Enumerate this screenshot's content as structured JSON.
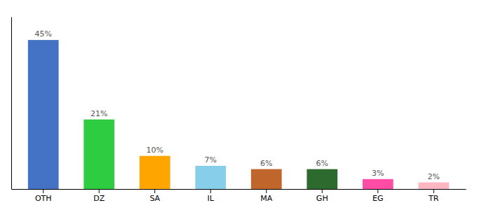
{
  "chart_data": {
    "type": "bar",
    "categories": [
      "OTH",
      "DZ",
      "SA",
      "IL",
      "MA",
      "GH",
      "EG",
      "TR"
    ],
    "values": [
      45,
      21,
      10,
      7,
      6,
      6,
      3,
      2
    ],
    "value_labels": [
      "45%",
      "21%",
      "10%",
      "7%",
      "6%",
      "6%",
      "3%",
      "2%"
    ],
    "colors": [
      "#4472C4",
      "#2ECC40",
      "#FFA500",
      "#87CEEB",
      "#C0652B",
      "#2D6A2D",
      "#FF4DA6",
      "#FFB6C1"
    ],
    "ylim": [
      0,
      52
    ],
    "tick_labels": "x"
  }
}
